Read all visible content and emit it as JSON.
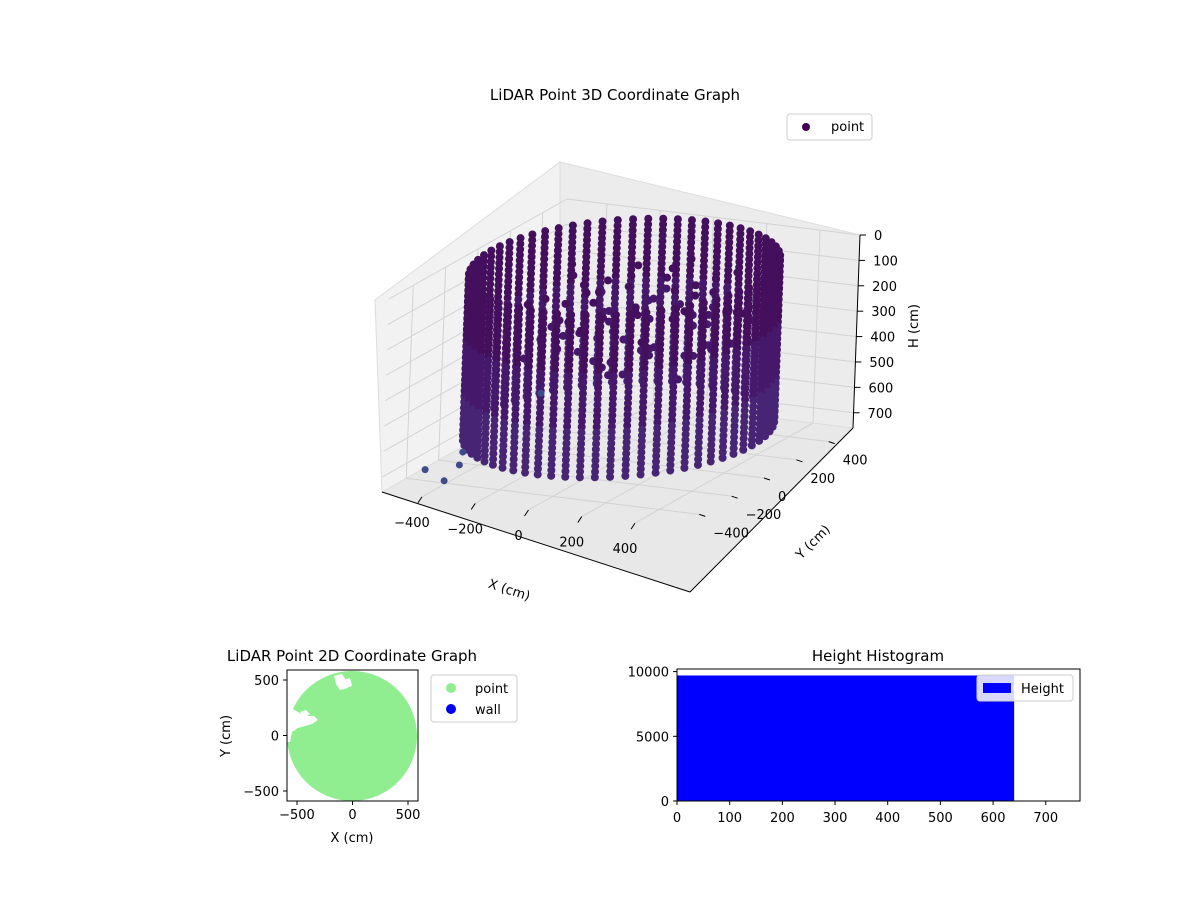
{
  "chart_data": [
    {
      "type": "scatter",
      "subtype": "3d-scatter",
      "title": "LiDAR Point 3D Coordinate Graph",
      "xlabel": "X (cm)",
      "ylabel": "Y (cm)",
      "zlabel": "H (cm)",
      "xlim": [
        -550,
        550
      ],
      "ylim": [
        -550,
        550
      ],
      "zlim": [
        0,
        760
      ],
      "z_inverted": true,
      "x_ticks": [
        "−400",
        "−200",
        "0",
        "200",
        "400"
      ],
      "y_ticks": [
        "400",
        "200",
        "0",
        "−200",
        "−400"
      ],
      "z_ticks": [
        "0",
        "100",
        "200",
        "300",
        "400",
        "500",
        "600",
        "700"
      ],
      "legend": [
        {
          "label": "point",
          "color": "#440154"
        }
      ],
      "legend_position": "upper-right",
      "grid": true,
      "colormap": "viridis",
      "marker_color": "#46186b",
      "structure": {
        "shape": "cylinder",
        "radius": 500,
        "height_range": [
          0,
          640
        ],
        "columns": 64
      },
      "outlier_points": [
        {
          "x": -520,
          "y": 380,
          "h": 700
        },
        {
          "x": -520,
          "y": -100,
          "h": 760
        },
        {
          "x": -540,
          "y": -300,
          "h": 760
        },
        {
          "x": -460,
          "y": -220,
          "h": 760
        },
        {
          "x": -420,
          "y": -380,
          "h": 760
        }
      ]
    },
    {
      "type": "scatter",
      "title": "LiDAR Point 2D Coordinate Graph",
      "xlabel": "X (cm)",
      "ylabel": "Y (cm)",
      "xlim": [
        -590,
        590
      ],
      "ylim": [
        -590,
        590
      ],
      "x_ticks": [
        "−500",
        "0",
        "500"
      ],
      "y_ticks": [
        "500",
        "0",
        "−500"
      ],
      "legend": [
        {
          "label": "point",
          "color": "#90ee90"
        },
        {
          "label": "wall",
          "color": "#0000ee"
        }
      ],
      "legend_position": "outside-right",
      "series": [
        {
          "name": "point",
          "shape": "disk",
          "radius": 580
        },
        {
          "name": "wall",
          "points": []
        }
      ]
    },
    {
      "type": "bar",
      "subtype": "histogram",
      "title": "Height Histogram",
      "xlim": [
        0,
        765
      ],
      "ylim": [
        0,
        10200
      ],
      "x_ticks": [
        "0",
        "100",
        "200",
        "300",
        "400",
        "500",
        "600",
        "700"
      ],
      "y_ticks": [
        "0",
        "5000",
        "10000"
      ],
      "legend": [
        {
          "label": "Height",
          "color": "#0000ff"
        }
      ],
      "legend_position": "upper-right",
      "bins": [
        {
          "from": 0,
          "to": 640,
          "count": 9700
        }
      ]
    }
  ]
}
